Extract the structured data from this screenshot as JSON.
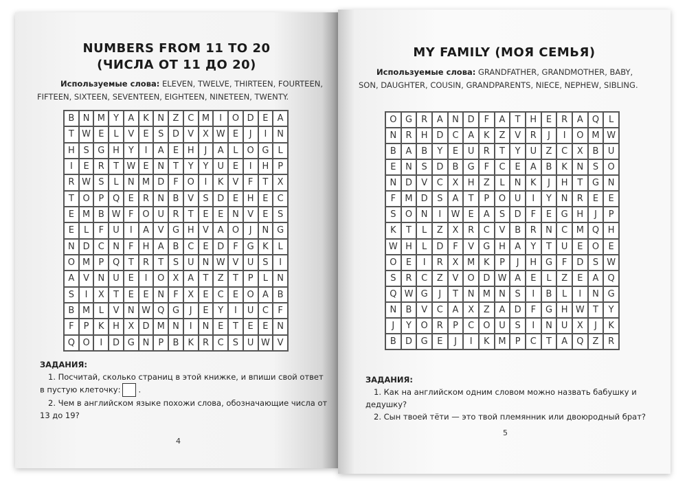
{
  "left_page": {
    "title_line1": "NUMBERS FROM 11 TO 20",
    "title_line2": "(ЧИСЛА ОТ 11 ДО 20)",
    "words_label": "Используемые слова:",
    "words": "ELEVEN, TWELVE, THIRTEEN, FOURTEEN, FIFTEEN, SIXTEEN, SEVENTEEN, EIGHTEEN, NINETEEN, TWENTY.",
    "grid": [
      "BNMYAKNZCMIODEA",
      "TWELVESDVXWEJIN",
      "HSGHYIAEHJALOGL",
      "IERTWENTYYUEIHP",
      "RWSLNMDFOIKVFTX",
      "TOPQERNBVSDEHEC",
      "EMBWFOURTEENVES",
      "ELFUIAVGHVAOJNG",
      "NDCNFHABCEDFGKL",
      "OMPQTRTSUNWVUSI",
      "AVNUEIOXATZTPLN",
      "SIXTEENFXECEOAB",
      "BMLVNWQGJEYIUCF",
      "FPKHXDMNINETEEN",
      "QOIDGNPBKRCSUWV"
    ],
    "tasks_heading": "ЗАДАНИЯ:",
    "task1_part1": "1. Посчитай, сколько страниц в этой книжке, и впиши свой ответ в пустую клеточку:",
    "task1_end": ".",
    "task2": "2. Чем в английском языке похожи слова, обозначающие числа от 13 до 19?",
    "page_number": "4"
  },
  "right_page": {
    "title": "MY FAMILY (МОЯ СЕМЬЯ)",
    "words_label": "Используемые слова:",
    "words": "GRANDFATHER, GRANDMOTHER, BABY, SON, DAUGHTER, COUSIN, GRANDPARENTS, NIECE, NEPHEW, SIBLING.",
    "grid": [
      "OGRANDFATHERAQL",
      "NRHDCAKZVRJIOMW",
      "BABYEURTYUZCXBU",
      "ENSDBGFCEABKNSO",
      "NDVCXHZLNKJHTGN",
      "FMDSATPOUIYNREE",
      "SONIWEASDFEGHJP",
      "KTLZXRCVBRNCMQH",
      "WHLDFVGHAYTUEOE",
      "OEIRXMKPJHGFDSW",
      "SRCZVODWAELZEAQ",
      "QWGJTNMNSIBLING",
      "NBVCAXZADFGHWTY",
      "JYORPCOUSINUXJK",
      "BDGEJIKMPCTAQZR"
    ],
    "tasks_heading": "ЗАДАНИЯ:",
    "task1": "1. Как на английском одним словом можно назвать бабушку и дедушку?",
    "task2": "2. Сын твоей тёти — это твой племянник или двоюродный брат?",
    "page_number": "5"
  }
}
